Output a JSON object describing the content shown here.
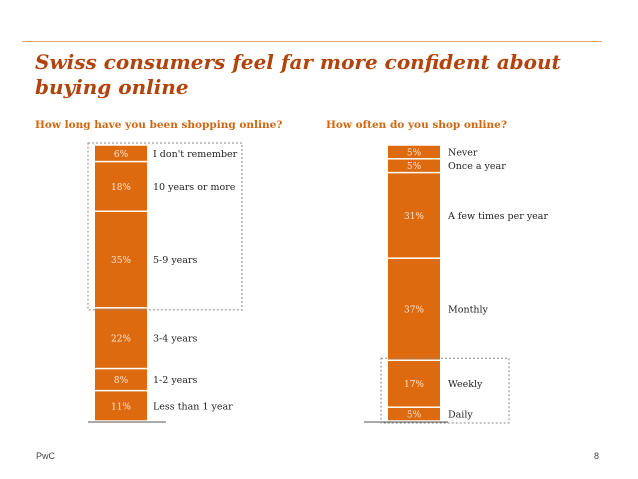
{
  "title": "Swiss consumers feel far more confident about buying online",
  "footer": {
    "brand": "PwC",
    "page": "8"
  },
  "colors": {
    "bar": "#dd6a0f",
    "title": "#b1430b",
    "subtitle": "#d0670f",
    "label": "#222222"
  },
  "chart_data": [
    {
      "type": "bar",
      "stacked": true,
      "title": "How long have you been shopping online?",
      "segments": [
        {
          "label": "Less than 1 year",
          "value": 11,
          "display": "11%"
        },
        {
          "label": "1-2 years",
          "value": 8,
          "display": "8%"
        },
        {
          "label": "3-4 years",
          "value": 22,
          "display": "22%"
        },
        {
          "label": "5-9 years",
          "value": 35,
          "display": "35%"
        },
        {
          "label": "10 years or more",
          "value": 18,
          "display": "18%"
        },
        {
          "label": "I don't remember",
          "value": 6,
          "display": "6%"
        }
      ],
      "highlight": [
        "5-9 years",
        "10 years or more",
        "I don't remember"
      ]
    },
    {
      "type": "bar",
      "stacked": true,
      "title": "How often do you shop online?",
      "segments": [
        {
          "label": "Daily",
          "value": 5,
          "display": "5%"
        },
        {
          "label": "Weekly",
          "value": 17,
          "display": "17%"
        },
        {
          "label": "Monthly",
          "value": 37,
          "display": "37%"
        },
        {
          "label": "A few times per year",
          "value": 31,
          "display": "31%"
        },
        {
          "label": "Once a year",
          "value": 5,
          "display": "5%"
        },
        {
          "label": "Never",
          "value": 5,
          "display": "5%"
        }
      ],
      "highlight": [
        "Daily",
        "Weekly"
      ]
    }
  ]
}
